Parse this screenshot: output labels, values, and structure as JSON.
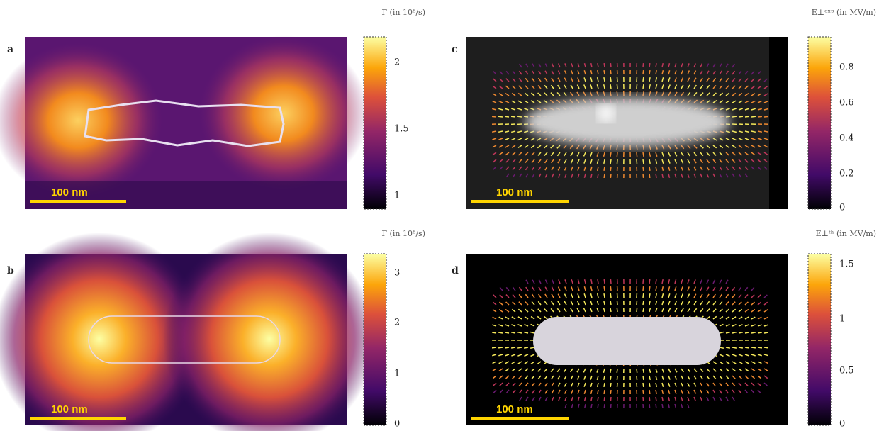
{
  "panels": [
    {
      "letter": "a",
      "scale_bar": "100 nm",
      "colorbar_title": "Γ (in 10⁸/s)",
      "colorbar_ticks": [
        "2",
        "1.5",
        "1"
      ]
    },
    {
      "letter": "b",
      "scale_bar": "100 nm",
      "colorbar_title": "Γ (in 10⁸/s)",
      "colorbar_ticks": [
        "3",
        "2",
        "1",
        "0"
      ]
    },
    {
      "letter": "c",
      "scale_bar": "100 nm",
      "colorbar_title": "E⊥ᵉˣᵖ (in MV/m)",
      "colorbar_ticks": [
        "0.8",
        "0.6",
        "0.4",
        "0.2",
        "0"
      ]
    },
    {
      "letter": "d",
      "scale_bar": "100 nm",
      "colorbar_title": "E⊥ᵗʰ (in MV/m)",
      "colorbar_ticks": [
        "1.5",
        "1",
        "0.5",
        "0"
      ]
    }
  ]
}
